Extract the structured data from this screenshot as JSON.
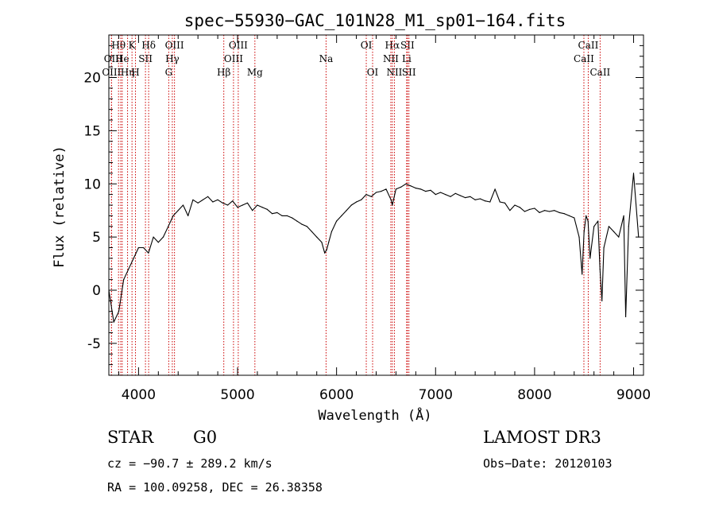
{
  "chart_data": {
    "type": "line",
    "title": "spec−55930−GAC_101N28_M1_sp01−164.fits",
    "xlabel": "Wavelength (Å)",
    "ylabel": "Flux (relative)",
    "xlim": [
      3700,
      9100
    ],
    "ylim": [
      -8,
      24
    ],
    "xticks": [
      4000,
      5000,
      6000,
      7000,
      8000,
      9000
    ],
    "yticks": [
      -5,
      0,
      5,
      10,
      15,
      20
    ],
    "grid": false,
    "series": [
      {
        "name": "flux",
        "x": [
          3700,
          3750,
          3800,
          3850,
          3900,
          3950,
          4000,
          4050,
          4100,
          4150,
          4200,
          4250,
          4300,
          4350,
          4400,
          4450,
          4500,
          4550,
          4600,
          4650,
          4700,
          4750,
          4800,
          4850,
          4900,
          4950,
          5000,
          5050,
          5100,
          5150,
          5200,
          5250,
          5300,
          5350,
          5400,
          5450,
          5500,
          5550,
          5600,
          5650,
          5700,
          5750,
          5800,
          5850,
          5880,
          5900,
          5920,
          5950,
          6000,
          6050,
          6100,
          6150,
          6200,
          6250,
          6300,
          6350,
          6400,
          6450,
          6500,
          6550,
          6563,
          6600,
          6650,
          6700,
          6750,
          6800,
          6850,
          6900,
          6950,
          7000,
          7050,
          7100,
          7150,
          7200,
          7250,
          7300,
          7350,
          7400,
          7450,
          7500,
          7550,
          7600,
          7650,
          7700,
          7750,
          7800,
          7850,
          7900,
          7950,
          8000,
          8050,
          8100,
          8150,
          8200,
          8250,
          8300,
          8350,
          8400,
          8450,
          8480,
          8500,
          8520,
          8540,
          8560,
          8600,
          8640,
          8660,
          8680,
          8700,
          8750,
          8800,
          8850,
          8900,
          8920,
          8950,
          9000,
          9050
        ],
        "y": [
          0,
          -3,
          -2,
          1,
          2,
          3,
          4,
          4,
          3.5,
          5,
          4.5,
          5,
          6,
          7,
          7.5,
          8,
          7,
          8.5,
          8.2,
          8.5,
          8.8,
          8.3,
          8.5,
          8.2,
          8,
          8.4,
          7.8,
          8,
          8.2,
          7.5,
          8,
          7.8,
          7.6,
          7.2,
          7.3,
          7,
          7,
          6.8,
          6.5,
          6.2,
          6,
          5.5,
          5,
          4.5,
          3.5,
          3.8,
          4.5,
          5.5,
          6.5,
          7,
          7.5,
          8,
          8.3,
          8.5,
          9,
          8.8,
          9.2,
          9.3,
          9.5,
          8.5,
          8,
          9.5,
          9.7,
          10,
          9.8,
          9.6,
          9.5,
          9.3,
          9.4,
          9,
          9.2,
          9,
          8.8,
          9.1,
          8.9,
          8.7,
          8.8,
          8.5,
          8.6,
          8.4,
          8.3,
          9.5,
          8.3,
          8.2,
          7.5,
          8,
          7.8,
          7.4,
          7.6,
          7.7,
          7.3,
          7.5,
          7.4,
          7.5,
          7.3,
          7.2,
          7.0,
          6.8,
          5,
          1.5,
          5.5,
          7,
          6.5,
          3,
          6,
          6.5,
          2,
          -1,
          4,
          6,
          5.5,
          5,
          7,
          -2.5,
          6,
          11,
          5
        ]
      }
    ],
    "vlines": [
      {
        "label": "Hθ",
        "x": 3798,
        "row": 1
      },
      {
        "label": "OII",
        "x": 3727,
        "row": 2
      },
      {
        "label": "OIII",
        "x": 3727,
        "row": 3
      },
      {
        "label": "He",
        "x": 3835,
        "row": 2
      },
      {
        "label": "Hη",
        "x": 3889,
        "row": 3
      },
      {
        "label": "K",
        "x": 3934,
        "row": 1
      },
      {
        "label": "H",
        "x": 3969,
        "row": 3
      },
      {
        "label": "I",
        "x": 3820,
        "row": 2
      },
      {
        "label": "SII",
        "x": 4070,
        "row": 2
      },
      {
        "label": "Hδ",
        "x": 4102,
        "row": 1
      },
      {
        "label": "OIII",
        "x": 4363,
        "row": 1
      },
      {
        "label": "Hγ",
        "x": 4341,
        "row": 2
      },
      {
        "label": "G",
        "x": 4305,
        "row": 3
      },
      {
        "label": "Hβ",
        "x": 4861,
        "row": 3
      },
      {
        "label": "OIII",
        "x": 5007,
        "row": 1
      },
      {
        "label": "OIII",
        "x": 4959,
        "row": 2
      },
      {
        "label": "Mg",
        "x": 5175,
        "row": 3
      },
      {
        "label": "Na",
        "x": 5894,
        "row": 2
      },
      {
        "label": "OI",
        "x": 6300,
        "row": 1
      },
      {
        "label": "OI",
        "x": 6364,
        "row": 3
      },
      {
        "label": "Hα",
        "x": 6563,
        "row": 1
      },
      {
        "label": "NII",
        "x": 6548,
        "row": 2
      },
      {
        "label": "NII",
        "x": 6584,
        "row": 3
      },
      {
        "label": "SII",
        "x": 6716,
        "row": 1
      },
      {
        "label": "Li",
        "x": 6708,
        "row": 2
      },
      {
        "label": "SII",
        "x": 6731,
        "row": 3
      },
      {
        "label": "CaII",
        "x": 8542,
        "row": 1
      },
      {
        "label": "CaII",
        "x": 8498,
        "row": 2
      },
      {
        "label": "CaII",
        "x": 8662,
        "row": 3
      }
    ]
  },
  "info": {
    "object_class": "STAR",
    "subclass": "G0",
    "survey": "LAMOST DR3",
    "cz": "cz = −90.7 ± 289.2 km/s",
    "obs_date": "Obs−Date: 20120103",
    "coords": "RA = 100.09258, DEC =  26.38358"
  },
  "colors": {
    "spectrum": "#000000",
    "lines": "#cc0000",
    "axes": "#000000"
  }
}
